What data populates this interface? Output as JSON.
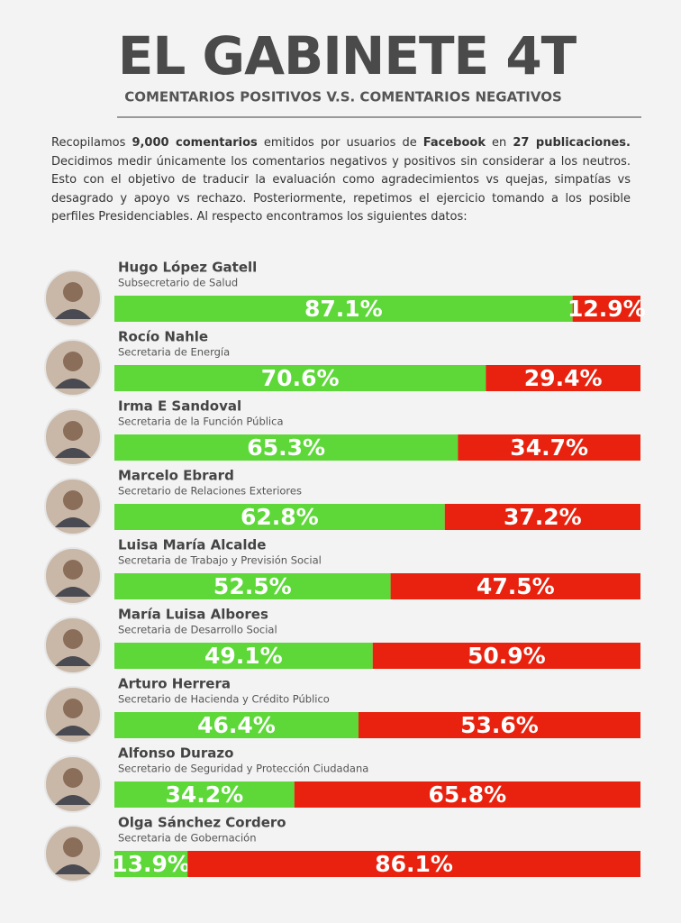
{
  "chart_data": {
    "type": "stacked-bar-horizontal",
    "title": "EL GABINETE 4T",
    "subtitle": "COMENTARIOS POSITIVOS V.S. COMENTARIOS NEGATIVOS",
    "intro": [
      {
        "text": "Recopilamos ",
        "bold": false
      },
      {
        "text": "9,000 comentarios",
        "bold": true
      },
      {
        "text": " emitidos por usuarios de ",
        "bold": false
      },
      {
        "text": "Facebook",
        "bold": true
      },
      {
        "text": " en ",
        "bold": false
      },
      {
        "text": "27 publicaciones.",
        "bold": true
      },
      {
        "text": " Decidimos medir únicamente los comentarios negativos y positivos sin considerar a los neutros. Esto con el objetivo de traducir la evaluación como agradecimientos vs quejas, simpatías vs desagrado y apoyo vs rechazo. Posteriormente, repetimos el ejercicio tomando a los posible perfiles Presidenciables. Al respecto encontramos los siguientes datos:",
        "bold": false
      }
    ],
    "categories": [
      "Hugo López Gatell",
      "Rocío Nahle",
      "Irma E Sandoval",
      "Marcelo Ebrard",
      "Luisa María Alcalde",
      "María Luisa Albores",
      "Arturo Herrera",
      "Alfonso Durazo",
      "Olga Sánchez Cordero"
    ],
    "category_roles": [
      "Subsecretario de Salud",
      "Secretaria de Energía",
      "Secretaria de la Función Pública",
      "Secretario de Relaciones Exteriores",
      "Secretaria de Trabajo y Previsión Social",
      "Secretaria de Desarrollo Social",
      "Secretario de Hacienda y Crédito Público",
      "Secretario de Seguridad y Protección Ciudadana",
      "Secretaria de Gobernación"
    ],
    "series": [
      {
        "color": "#5dd838",
        "values": [
          87.1,
          70.6,
          65.3,
          62.8,
          52.5,
          49.1,
          46.4,
          34.2,
          13.9
        ],
        "value_labels": [
          "87.1%",
          "70.6%",
          "65.3%",
          "62.8%",
          "52.5%",
          "49.1%",
          "46.4%",
          "34.2%",
          "13.9%"
        ]
      },
      {
        "color": "#e8220e",
        "values": [
          12.9,
          29.4,
          34.7,
          37.2,
          47.5,
          50.9,
          53.6,
          65.8,
          86.1
        ],
        "value_labels": [
          "12.9%",
          "29.4%",
          "34.7%",
          "37.2%",
          "47.5%",
          "50.9%",
          "53.6%",
          "65.8%",
          "86.1%"
        ]
      }
    ],
    "xlim": [
      0,
      100
    ]
  }
}
